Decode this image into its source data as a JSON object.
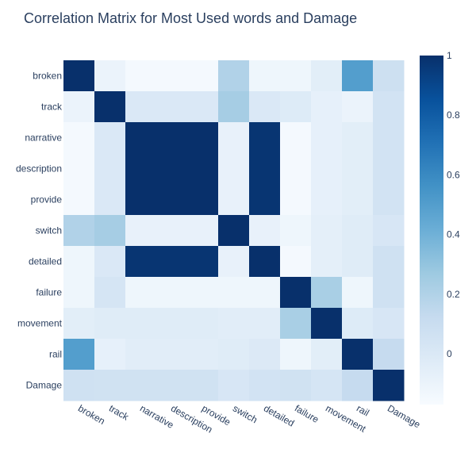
{
  "chart_data": {
    "type": "heatmap",
    "title": "Correlation Matrix for Most Used words and Damage",
    "x_labels": [
      "broken",
      "track",
      "narrative",
      "description",
      "provide",
      "switch",
      "detailed",
      "failure",
      "movement",
      "rail",
      "Damage"
    ],
    "y_labels": [
      "broken",
      "track",
      "narrative",
      "description",
      "provide",
      "switch",
      "detailed",
      "failure",
      "movement",
      "rail",
      "Damage"
    ],
    "values": [
      [
        1.0,
        -0.1,
        -0.15,
        -0.15,
        -0.15,
        0.2,
        -0.12,
        -0.12,
        -0.05,
        0.5,
        0.08
      ],
      [
        -0.1,
        1.0,
        0.0,
        0.0,
        0.0,
        0.24,
        0.0,
        -0.02,
        -0.07,
        -0.1,
        0.05
      ],
      [
        -0.15,
        0.0,
        1.0,
        1.0,
        1.0,
        -0.08,
        0.98,
        -0.15,
        -0.07,
        -0.05,
        0.05
      ],
      [
        -0.15,
        0.0,
        1.0,
        1.0,
        1.0,
        -0.08,
        0.98,
        -0.15,
        -0.07,
        -0.05,
        0.05
      ],
      [
        -0.15,
        0.0,
        1.0,
        1.0,
        1.0,
        -0.08,
        0.98,
        -0.15,
        -0.07,
        -0.05,
        0.05
      ],
      [
        0.2,
        0.24,
        -0.08,
        -0.08,
        -0.08,
        1.0,
        -0.08,
        -0.12,
        -0.06,
        -0.03,
        0.02
      ],
      [
        -0.12,
        0.0,
        0.98,
        0.98,
        0.98,
        -0.08,
        1.0,
        -0.15,
        -0.06,
        -0.03,
        0.07
      ],
      [
        -0.12,
        0.03,
        -0.12,
        -0.12,
        -0.12,
        -0.12,
        -0.12,
        1.0,
        0.23,
        -0.12,
        0.07
      ],
      [
        -0.05,
        -0.03,
        -0.03,
        -0.03,
        -0.03,
        -0.04,
        -0.04,
        0.23,
        1.0,
        -0.02,
        0.02
      ],
      [
        0.5,
        -0.07,
        -0.04,
        -0.04,
        -0.04,
        -0.03,
        -0.01,
        -0.12,
        -0.05,
        1.0,
        0.12
      ],
      [
        0.07,
        0.06,
        0.06,
        0.06,
        0.06,
        0.02,
        0.05,
        0.06,
        0.03,
        0.12,
        1.0
      ]
    ],
    "zmin": -0.17,
    "zmax": 1,
    "colorscale": [
      "#f7fbff",
      "#deebf7",
      "#c6dbef",
      "#9ecae1",
      "#6baed6",
      "#4292c6",
      "#2171b5",
      "#08519c",
      "#08306b"
    ],
    "colorbar": {
      "tick_values": [
        0,
        0.2,
        0.4,
        0.6,
        0.8,
        1
      ],
      "tick_labels": [
        "0",
        "0.2",
        "0.4",
        "0.6",
        "0.8",
        "1"
      ]
    }
  }
}
